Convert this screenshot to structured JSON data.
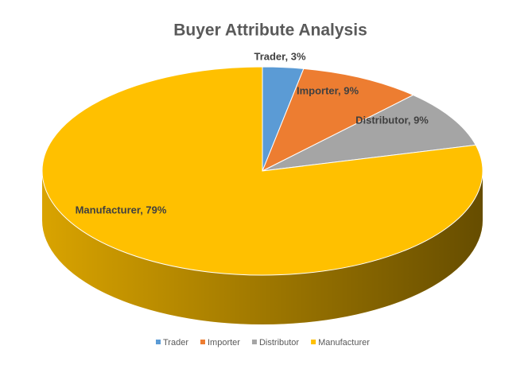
{
  "chart_data": {
    "type": "pie3d",
    "title": "Buyer Attribute Analysis",
    "categories": [
      "Trader",
      "Importer",
      "Distributor",
      "Manufacturer"
    ],
    "values": [
      3,
      9,
      9,
      79
    ],
    "value_labels": [
      "Trader, 3%",
      "Importer, 9%",
      "Distributor, 9%",
      "Manufacturer, 79%"
    ],
    "colors": [
      "#5b9bd5",
      "#ed7d31",
      "#a5a5a5",
      "#ffc000"
    ],
    "legend": "bottom"
  }
}
